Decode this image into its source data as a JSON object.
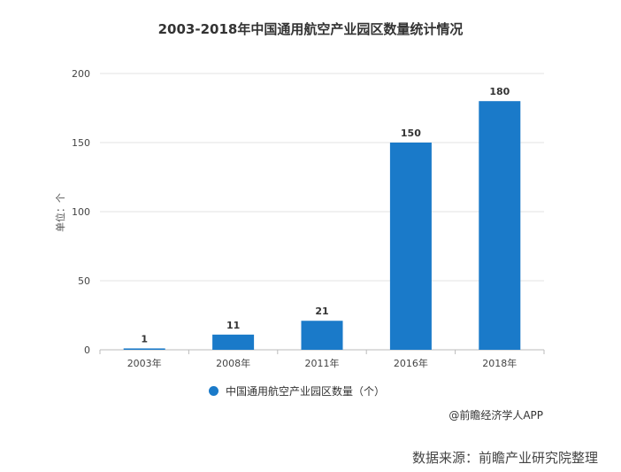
{
  "chart_data": {
    "type": "bar",
    "title": "2003-2018年中国通用航空产业园区数量统计情况",
    "categories": [
      "2003年",
      "2008年",
      "2011年",
      "2016年",
      "2018年"
    ],
    "series": [
      {
        "name": "中国通用航空产业园区数量（个）",
        "values": [
          1,
          11,
          21,
          150,
          180
        ],
        "color": "#1a7ac9"
      }
    ],
    "xlabel": "",
    "ylabel": "单位：个",
    "ylim": [
      0,
      200
    ],
    "yticks": [
      0,
      50,
      100,
      150,
      200
    ],
    "grid": true,
    "legend": "bottom",
    "data_labels": true
  },
  "credit": "@前瞻经济学人APP",
  "source": "数据来源：前瞻产业研究院整理"
}
